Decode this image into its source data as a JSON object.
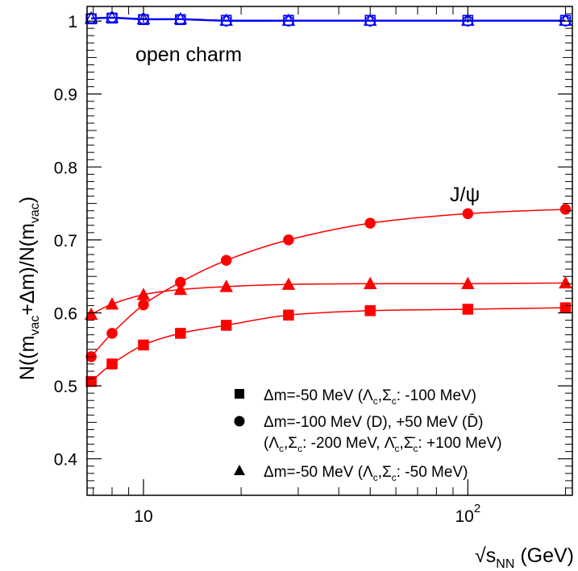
{
  "chart_data": {
    "type": "line",
    "x_scale": "log",
    "xlim": [
      6.7,
      210
    ],
    "ylim": [
      0.35,
      1.02
    ],
    "x_ticks": [
      {
        "value": 10,
        "label": "10"
      },
      {
        "value": 100,
        "label": "10",
        "sup": "2"
      }
    ],
    "y_ticks": [
      0.4,
      0.5,
      0.6,
      0.7,
      0.8,
      0.9,
      1
    ],
    "y_tick_labels": [
      "0.4",
      "0.5",
      "0.6",
      "0.7",
      "0.8",
      "0.9",
      "1"
    ],
    "xlabel": "√s_NN (GeV)",
    "ylabel": "N((m_vac+Δm)/N(m_vac)",
    "grid": false,
    "annotations": {
      "open_charm": "open charm",
      "jpsi": "J/ψ"
    },
    "legend": {
      "position": "bottom-right",
      "entries": [
        {
          "marker": "square",
          "text": "Δm=-50 MeV (Λ_c,Σ_c: -100 MeV)"
        },
        {
          "marker": "circle",
          "text": "Δm=-100 MeV (D), +50 MeV (D̄)"
        },
        {
          "marker": "none",
          "text": "(Λ_c,Σ_c: -200 MeV, Λ̄_c,Σ̄_c: +100 MeV)"
        },
        {
          "marker": "triangle",
          "text": "Δm=-50 MeV (Λ_c,Σ_c: -50 MeV)"
        }
      ]
    },
    "series": [
      {
        "group": "jpsi",
        "marker": "square",
        "color": "#ff0000",
        "x": [
          6.9,
          8,
          10,
          13,
          18,
          28,
          50,
          100,
          200
        ],
        "y": [
          0.506,
          0.53,
          0.556,
          0.572,
          0.583,
          0.597,
          0.603,
          0.605,
          0.607
        ]
      },
      {
        "group": "jpsi",
        "marker": "circle",
        "color": "#ff0000",
        "x": [
          6.9,
          8,
          10,
          13,
          18,
          28,
          50,
          100,
          200
        ],
        "y": [
          0.54,
          0.572,
          0.611,
          0.642,
          0.672,
          0.7,
          0.723,
          0.736,
          0.742
        ]
      },
      {
        "group": "jpsi",
        "marker": "triangle",
        "color": "#ff0000",
        "x": [
          6.9,
          8,
          10,
          13,
          18,
          28,
          50,
          100,
          200
        ],
        "y": [
          0.598,
          0.612,
          0.625,
          0.632,
          0.636,
          0.639,
          0.64,
          0.64,
          0.641
        ]
      },
      {
        "group": "open_charm",
        "marker": "open-square",
        "color": "#0000ff",
        "x": [
          6.9,
          8,
          10,
          13,
          18,
          28,
          50,
          100,
          200
        ],
        "y": [
          1.003,
          1.004,
          1.002,
          1.002,
          1.001,
          1.001,
          1.001,
          1.001,
          1.001
        ]
      },
      {
        "group": "open_charm",
        "marker": "open-circle",
        "color": "#0000ff",
        "x": [
          6.9,
          8,
          10,
          13,
          18,
          28,
          50,
          100,
          200
        ],
        "y": [
          1.004,
          1.005,
          1.003,
          1.002,
          1.0,
          1.0,
          1.0,
          1.0,
          1.0
        ]
      },
      {
        "group": "open_charm",
        "marker": "open-triangle",
        "color": "#0000ff",
        "x": [
          6.9,
          8,
          10,
          13,
          18,
          28,
          50,
          100,
          200
        ],
        "y": [
          1.004,
          1.005,
          1.003,
          1.003,
          1.001,
          1.001,
          1.001,
          1.001,
          1.001
        ]
      }
    ]
  }
}
